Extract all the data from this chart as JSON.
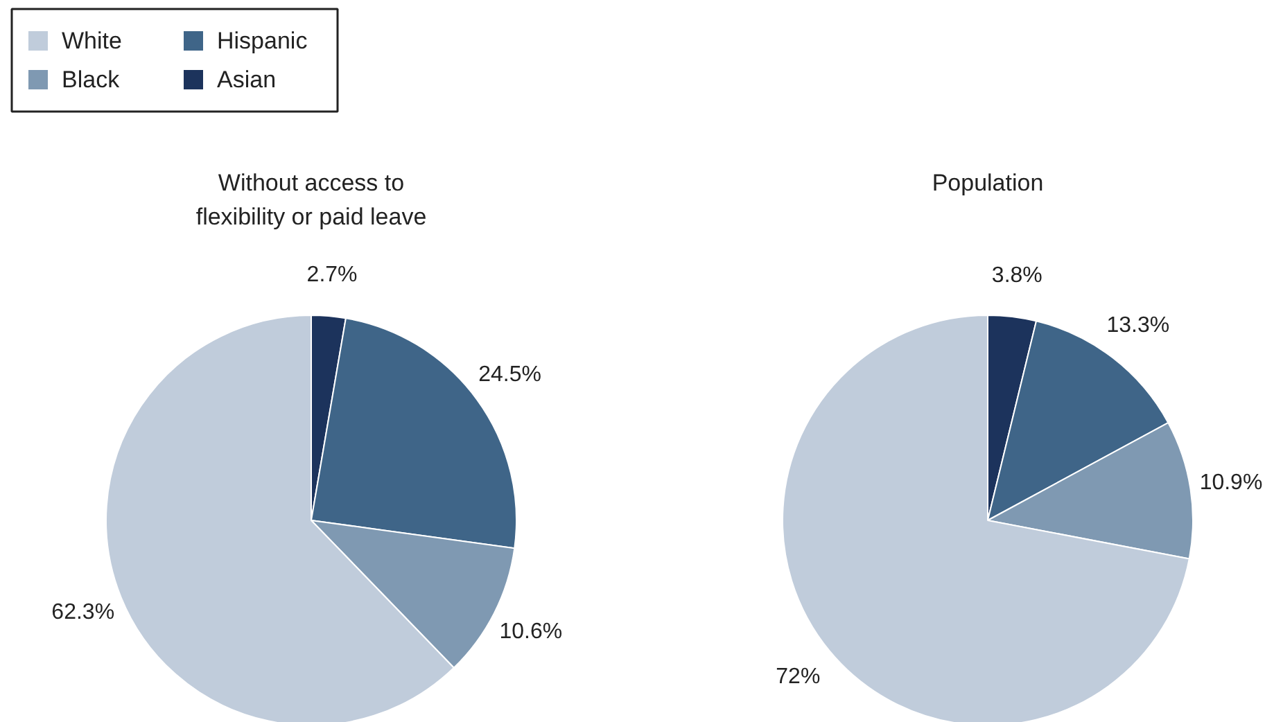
{
  "chart_data": [
    {
      "type": "pie",
      "title": "Without access to\nflexibility or paid leave",
      "categories": [
        "Asian",
        "Hispanic",
        "Black",
        "White"
      ],
      "values": [
        2.7,
        24.5,
        10.6,
        62.3
      ],
      "value_labels": [
        "2.7%",
        "24.5%",
        "10.6%",
        "62.3%"
      ],
      "colors": [
        "#1c335c",
        "#3f6588",
        "#7f99b2",
        "#c0ccdb"
      ],
      "legend": "top left"
    },
    {
      "type": "pie",
      "title": "Population",
      "categories": [
        null,
        null,
        null,
        null
      ],
      "values": [
        3.8,
        13.3,
        10.9,
        72
      ],
      "value_labels": [
        "3.8%",
        "13.3%",
        "10.9%",
        "72%"
      ],
      "colors": [
        "#1c335c",
        "#3f6588",
        "#7f99b2",
        "#c0ccdb"
      ]
    }
  ]
}
